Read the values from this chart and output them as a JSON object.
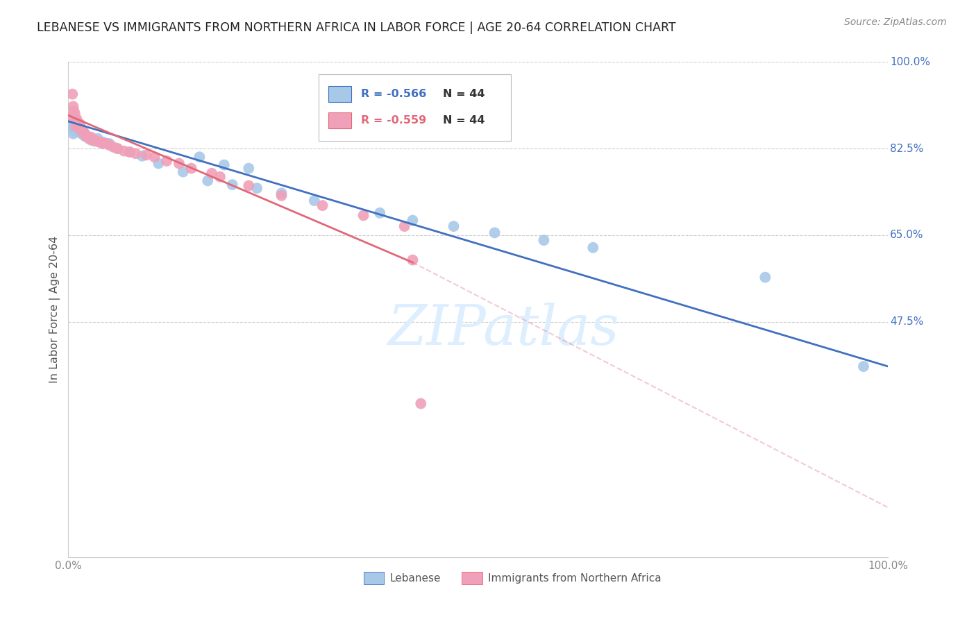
{
  "title": "LEBANESE VS IMMIGRANTS FROM NORTHERN AFRICA IN LABOR FORCE | AGE 20-64 CORRELATION CHART",
  "source": "Source: ZipAtlas.com",
  "ylabel": "In Labor Force | Age 20-64",
  "xlim": [
    0.0,
    1.0
  ],
  "ylim": [
    0.0,
    1.0
  ],
  "xticks": [
    0.0,
    0.1,
    0.2,
    0.3,
    0.4,
    0.5,
    0.6,
    0.7,
    0.8,
    0.9,
    1.0
  ],
  "xticklabels": [
    "0.0%",
    "",
    "",
    "",
    "",
    "",
    "",
    "",
    "",
    "",
    "100.0%"
  ],
  "right_ytick_vals": [
    0.475,
    0.65,
    0.825,
    1.0
  ],
  "right_ytick_labels": [
    "47.5%",
    "65.0%",
    "82.5%",
    "100.0%"
  ],
  "grid_vals": [
    0.475,
    0.65,
    0.825,
    1.0
  ],
  "grid_color": "#cccccc",
  "background_color": "#ffffff",
  "blue_scatter_color": "#a8c8e8",
  "pink_scatter_color": "#f0a0b8",
  "blue_line_color": "#4070c0",
  "pink_line_color": "#e06878",
  "watermark_text": "ZIPatlas",
  "watermark_color": "#ddeeff",
  "legend_R_blue": "-0.566",
  "legend_N_blue": "44",
  "legend_R_pink": "-0.559",
  "legend_N_pink": "44",
  "legend_label_blue": "Lebanese",
  "legend_label_pink": "Immigrants from Northern Africa",
  "blue_x": [
    0.003,
    0.005,
    0.006,
    0.007,
    0.008,
    0.009,
    0.01,
    0.011,
    0.012,
    0.013,
    0.014,
    0.015,
    0.016,
    0.017,
    0.018,
    0.02,
    0.022,
    0.025,
    0.028,
    0.032,
    0.036,
    0.042,
    0.05,
    0.06,
    0.075,
    0.09,
    0.11,
    0.14,
    0.17,
    0.2,
    0.23,
    0.26,
    0.3,
    0.16,
    0.19,
    0.22,
    0.38,
    0.42,
    0.47,
    0.52,
    0.58,
    0.64,
    0.85,
    0.97
  ],
  "blue_y": [
    0.87,
    0.875,
    0.855,
    0.865,
    0.86,
    0.88,
    0.875,
    0.87,
    0.868,
    0.862,
    0.865,
    0.858,
    0.855,
    0.862,
    0.858,
    0.85,
    0.852,
    0.848,
    0.842,
    0.84,
    0.845,
    0.838,
    0.835,
    0.825,
    0.818,
    0.81,
    0.795,
    0.778,
    0.76,
    0.752,
    0.745,
    0.735,
    0.72,
    0.808,
    0.792,
    0.785,
    0.695,
    0.68,
    0.668,
    0.655,
    0.64,
    0.625,
    0.565,
    0.385
  ],
  "pink_x": [
    0.003,
    0.005,
    0.006,
    0.007,
    0.008,
    0.009,
    0.01,
    0.011,
    0.012,
    0.013,
    0.014,
    0.015,
    0.016,
    0.018,
    0.02,
    0.022,
    0.025,
    0.03,
    0.035,
    0.042,
    0.05,
    0.06,
    0.075,
    0.028,
    0.032,
    0.095,
    0.12,
    0.15,
    0.185,
    0.22,
    0.26,
    0.31,
    0.36,
    0.41,
    0.038,
    0.045,
    0.055,
    0.068,
    0.082,
    0.105,
    0.135,
    0.175,
    0.42,
    0.43
  ],
  "pink_y": [
    0.89,
    0.935,
    0.91,
    0.9,
    0.895,
    0.87,
    0.885,
    0.88,
    0.875,
    0.87,
    0.875,
    0.868,
    0.86,
    0.862,
    0.855,
    0.85,
    0.845,
    0.842,
    0.84,
    0.835,
    0.832,
    0.825,
    0.818,
    0.848,
    0.842,
    0.812,
    0.8,
    0.785,
    0.768,
    0.75,
    0.73,
    0.71,
    0.69,
    0.668,
    0.838,
    0.836,
    0.828,
    0.82,
    0.815,
    0.808,
    0.795,
    0.775,
    0.6,
    0.31
  ],
  "blue_trend": [
    0.0,
    1.0,
    0.88,
    0.385
  ],
  "pink_trend_solid": [
    0.0,
    0.42,
    0.892,
    0.595
  ],
  "pink_trend_dashed": [
    0.42,
    1.0,
    0.595,
    0.1
  ]
}
